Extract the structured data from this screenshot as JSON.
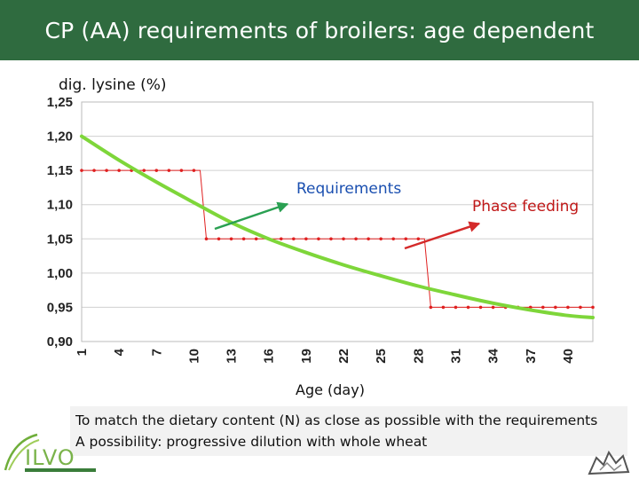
{
  "header": {
    "title": "CP (AA) requirements of broilers: age dependent"
  },
  "note": {
    "line1": "To match the dietary content (N) as close as possible with the requirements",
    "line2": "A possibility: progressive dilution with whole wheat"
  },
  "logo": {
    "text": "ILVO"
  },
  "colors": {
    "header_bg": "#2f6b3f",
    "requirement_curve": "#7ed63a",
    "phase_line": "#e02020",
    "requirement_arrow": "#2aa052",
    "phase_arrow": "#d42a2a"
  },
  "chart_data": {
    "type": "line",
    "title": "",
    "ylabel": "dig. lysine (%)",
    "xlabel": "Age (day)",
    "ylim": [
      0.9,
      1.25
    ],
    "xlim": [
      1,
      42
    ],
    "yticks": [
      "1,25",
      "1,20",
      "1,15",
      "1,10",
      "1,05",
      "1,00",
      "0,95",
      "0,90"
    ],
    "ytick_values": [
      1.25,
      1.2,
      1.15,
      1.1,
      1.05,
      1.0,
      0.95,
      0.9
    ],
    "xticks": [
      "1",
      "4",
      "7",
      "10",
      "13",
      "16",
      "19",
      "22",
      "25",
      "28",
      "31",
      "34",
      "37",
      "40"
    ],
    "xtick_values": [
      1,
      4,
      7,
      10,
      13,
      16,
      19,
      22,
      25,
      28,
      31,
      34,
      37,
      40
    ],
    "grid": true,
    "series": [
      {
        "name": "Requirements",
        "style": "smooth-line",
        "x": [
          1,
          4,
          7,
          10,
          13,
          16,
          19,
          22,
          25,
          28,
          31,
          34,
          37,
          40,
          42
        ],
        "y": [
          1.2,
          1.165,
          1.133,
          1.103,
          1.074,
          1.05,
          1.03,
          1.012,
          0.996,
          0.981,
          0.968,
          0.956,
          0.946,
          0.938,
          0.935
        ]
      },
      {
        "name": "Phase feeding",
        "style": "step-dotted",
        "x": [
          1,
          2,
          3,
          4,
          5,
          6,
          7,
          8,
          9,
          10,
          10.5,
          11,
          12,
          13,
          14,
          15,
          16,
          17,
          18,
          19,
          20,
          21,
          22,
          23,
          24,
          25,
          26,
          27,
          28,
          28.5,
          29,
          30,
          31,
          32,
          33,
          34,
          35,
          36,
          37,
          38,
          39,
          40,
          41,
          42
        ],
        "y": [
          1.15,
          1.15,
          1.15,
          1.15,
          1.15,
          1.15,
          1.15,
          1.15,
          1.15,
          1.15,
          1.15,
          1.05,
          1.05,
          1.05,
          1.05,
          1.05,
          1.05,
          1.05,
          1.05,
          1.05,
          1.05,
          1.05,
          1.05,
          1.05,
          1.05,
          1.05,
          1.05,
          1.05,
          1.05,
          1.05,
          0.95,
          0.95,
          0.95,
          0.95,
          0.95,
          0.95,
          0.95,
          0.95,
          0.95,
          0.95,
          0.95,
          0.95,
          0.95,
          0.95
        ]
      }
    ],
    "annotations": [
      {
        "text": "Requirements",
        "target": "Requirements"
      },
      {
        "text": "Phase feeding",
        "target": "Phase feeding"
      }
    ]
  }
}
